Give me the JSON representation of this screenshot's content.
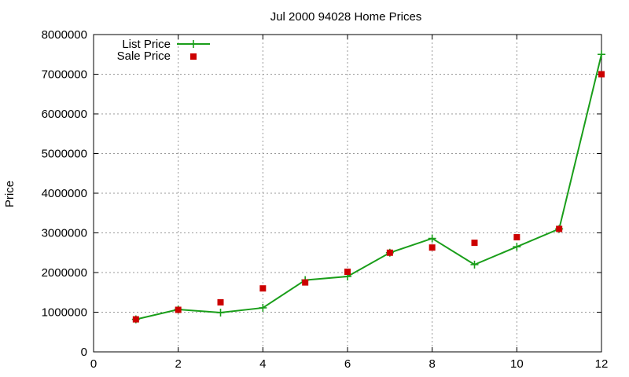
{
  "chart_data": {
    "type": "line",
    "title": "Jul 2000 94028 Home Prices",
    "xlabel": "",
    "ylabel": "Price",
    "xlim": [
      0,
      12
    ],
    "ylim": [
      0,
      8000000
    ],
    "xticks": [
      "0",
      "2",
      "4",
      "6",
      "8",
      "10",
      "12"
    ],
    "yticks": [
      "0",
      "1000000",
      "2000000",
      "3000000",
      "4000000",
      "5000000",
      "6000000",
      "7000000",
      "8000000"
    ],
    "grid": true,
    "legend_position": "top-left",
    "series": [
      {
        "name": "List Price",
        "style": "linespoints",
        "color": "#1a9e1a",
        "x": [
          1,
          2,
          3,
          4,
          5,
          6,
          7,
          8,
          9,
          10,
          11,
          12
        ],
        "values": [
          820000,
          1070000,
          990000,
          1110000,
          1810000,
          1900000,
          2500000,
          2860000,
          2200000,
          2650000,
          3100000,
          7500000
        ]
      },
      {
        "name": "Sale Price",
        "style": "points",
        "color": "#cc0000",
        "x": [
          1,
          2,
          3,
          4,
          5,
          6,
          7,
          8,
          9,
          10,
          11,
          12
        ],
        "values": [
          820000,
          1060000,
          1250000,
          1600000,
          1750000,
          2020000,
          2500000,
          2630000,
          2750000,
          2890000,
          3100000,
          7000000
        ]
      }
    ]
  }
}
